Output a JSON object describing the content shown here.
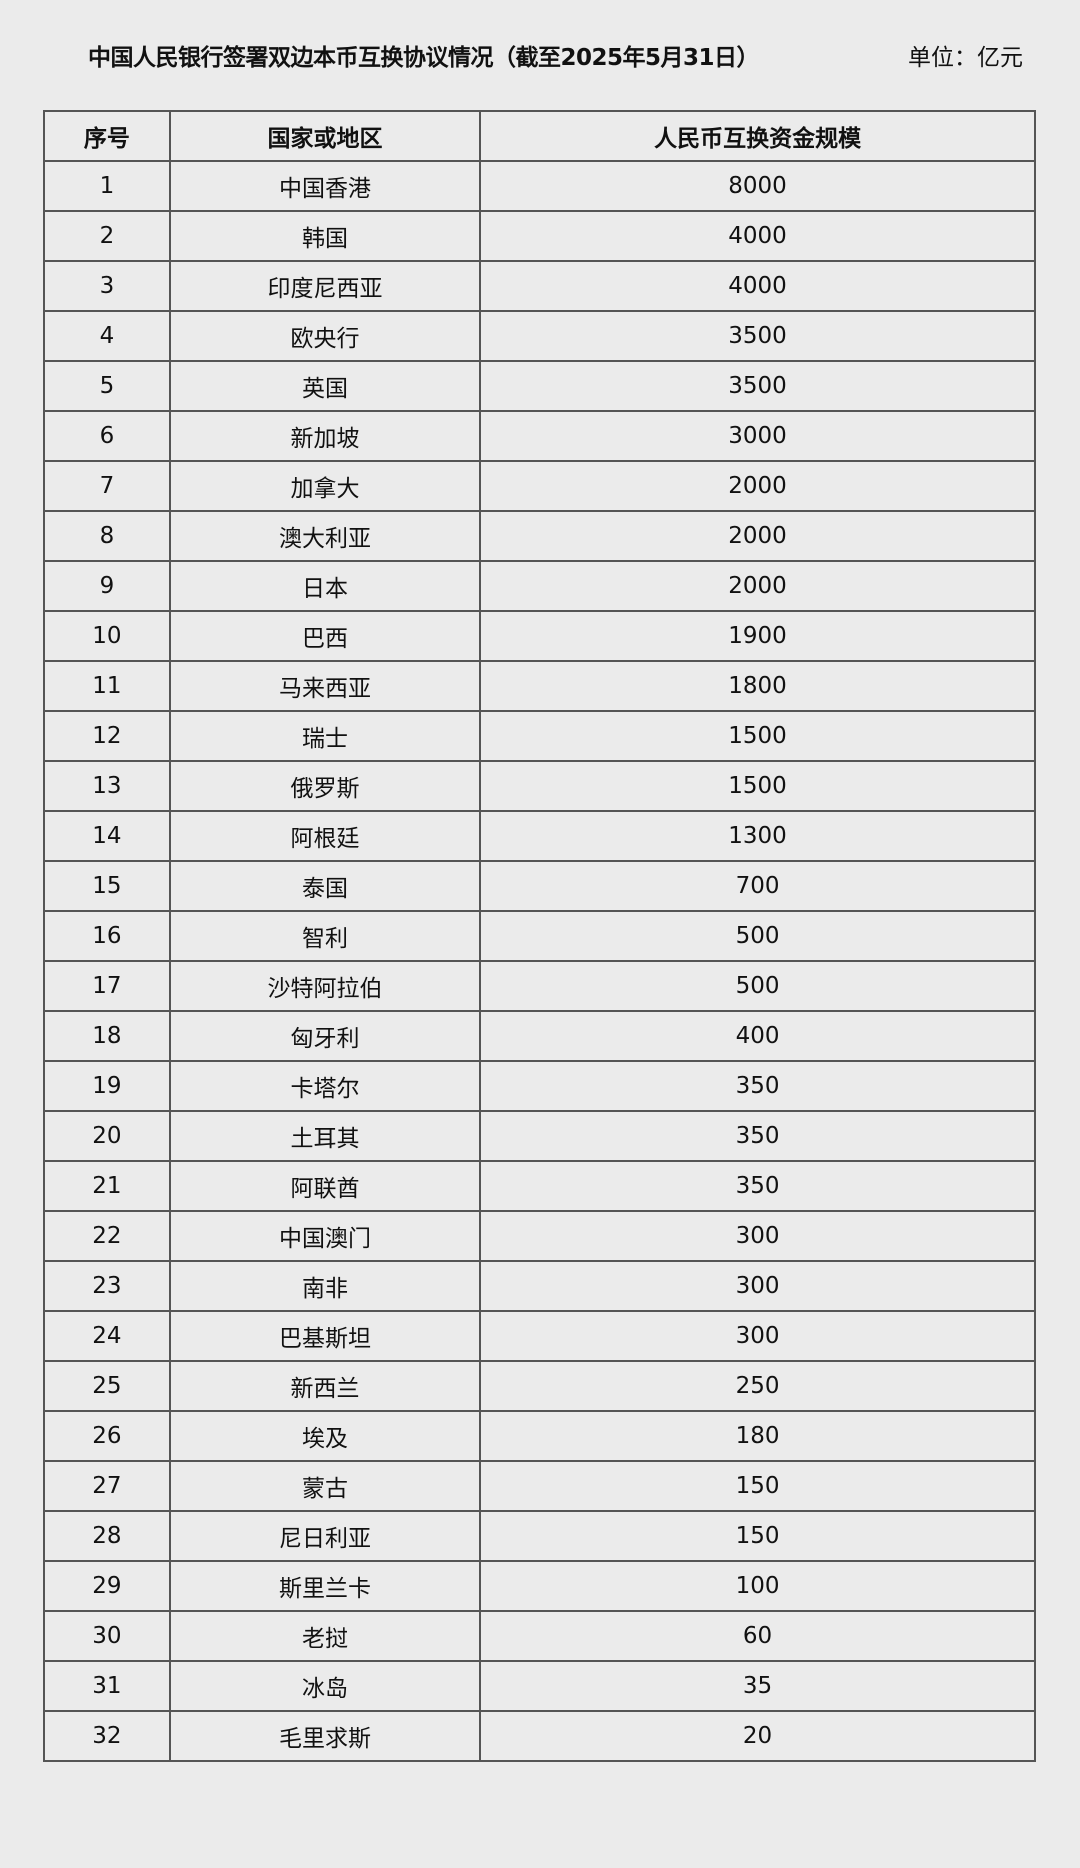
{
  "title": "中国人民银行签署双边本币互换协议情况（截至2025年5月31日）",
  "unit": "单位：亿元",
  "table": {
    "headers": [
      "序号",
      "国家或地区",
      "人民币互换资金规模"
    ],
    "rows": [
      [
        "1",
        "中国香港",
        "8000"
      ],
      [
        "2",
        "韩国",
        "4000"
      ],
      [
        "3",
        "印度尼西亚",
        "4000"
      ],
      [
        "4",
        "欧央行",
        "3500"
      ],
      [
        "5",
        "英国",
        "3500"
      ],
      [
        "6",
        "新加坡",
        "3000"
      ],
      [
        "7",
        "加拿大",
        "2000"
      ],
      [
        "8",
        "澳大利亚",
        "2000"
      ],
      [
        "9",
        "日本",
        "2000"
      ],
      [
        "10",
        "巴西",
        "1900"
      ],
      [
        "11",
        "马来西亚",
        "1800"
      ],
      [
        "12",
        "瑞士",
        "1500"
      ],
      [
        "13",
        "俄罗斯",
        "1500"
      ],
      [
        "14",
        "阿根廷",
        "1300"
      ],
      [
        "15",
        "泰国",
        "700"
      ],
      [
        "16",
        "智利",
        "500"
      ],
      [
        "17",
        "沙特阿拉伯",
        "500"
      ],
      [
        "18",
        "匈牙利",
        "400"
      ],
      [
        "19",
        "卡塔尔",
        "350"
      ],
      [
        "20",
        "土耳其",
        "350"
      ],
      [
        "21",
        "阿联酋",
        "350"
      ],
      [
        "22",
        "中国澳门",
        "300"
      ],
      [
        "23",
        "南非",
        "300"
      ],
      [
        "24",
        "巴基斯坦",
        "300"
      ],
      [
        "25",
        "新西兰",
        "250"
      ],
      [
        "26",
        "埃及",
        "180"
      ],
      [
        "27",
        "蒙古",
        "150"
      ],
      [
        "28",
        "尼日利亚",
        "150"
      ],
      [
        "29",
        "斯里兰卡",
        "100"
      ],
      [
        "30",
        "老挝",
        "60"
      ],
      [
        "31",
        "冰岛",
        "35"
      ],
      [
        "32",
        "毛里求斯",
        "20"
      ]
    ]
  }
}
